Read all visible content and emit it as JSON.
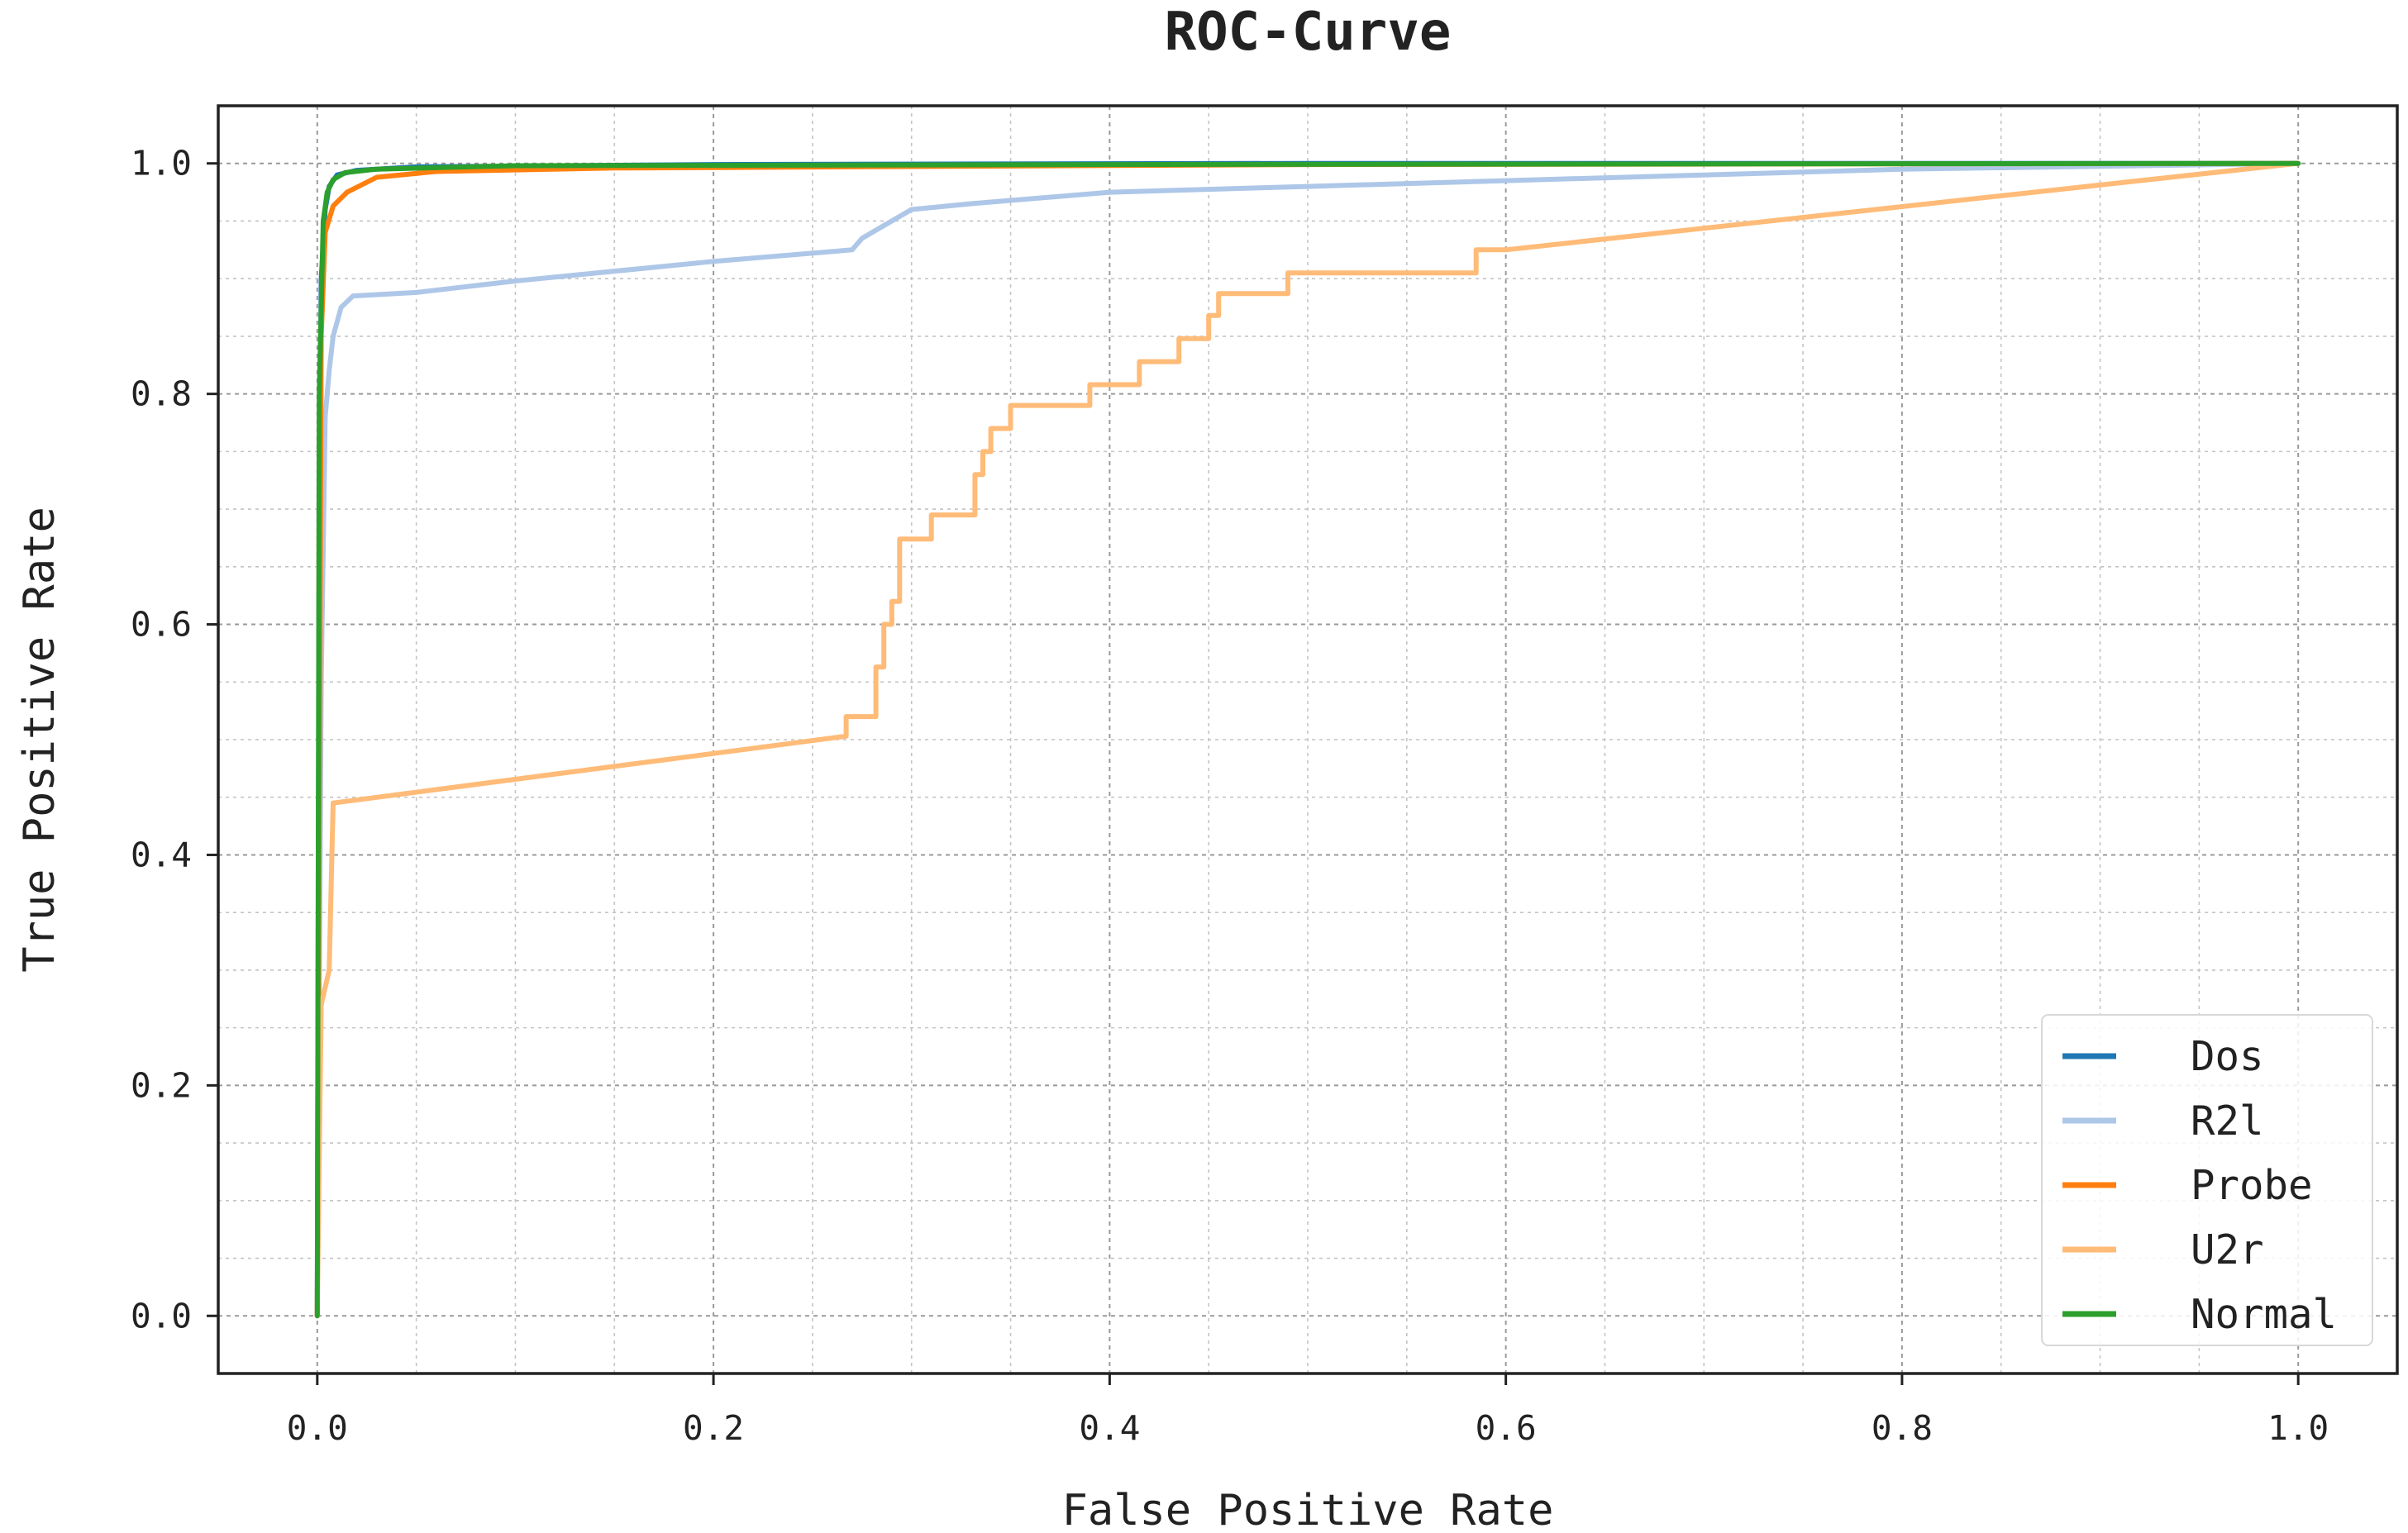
{
  "chart_data": {
    "type": "line",
    "title": "ROC-Curve",
    "xlabel": "False Positive Rate",
    "ylabel": "True Positive Rate",
    "xlim": [
      -0.05,
      1.05
    ],
    "ylim": [
      -0.05,
      1.05
    ],
    "xticks": [
      0.0,
      0.2,
      0.4,
      0.6,
      0.8,
      1.0
    ],
    "xtick_labels": [
      "0.0",
      "0.2",
      "0.4",
      "0.6",
      "0.8",
      "1.0"
    ],
    "yticks": [
      0.0,
      0.2,
      0.4,
      0.6,
      0.8,
      1.0
    ],
    "ytick_labels": [
      "0.0",
      "0.2",
      "0.4",
      "0.6",
      "0.8",
      "1.0"
    ],
    "grid": true,
    "minor_grid": true,
    "legend_position": "lower-right",
    "series": [
      {
        "name": "Dos",
        "color": "#1f77b4",
        "points": [
          [
            0,
            0
          ],
          [
            0.001,
            0.7
          ],
          [
            0.002,
            0.9
          ],
          [
            0.004,
            0.96
          ],
          [
            0.006,
            0.98
          ],
          [
            0.01,
            0.99
          ],
          [
            0.02,
            0.994
          ],
          [
            0.05,
            0.997
          ],
          [
            0.2,
            0.999
          ],
          [
            0.5,
            1.0
          ],
          [
            1.0,
            1.0
          ]
        ]
      },
      {
        "name": "R2l",
        "color": "#aec7e8",
        "points": [
          [
            0,
            0
          ],
          [
            0.002,
            0.55
          ],
          [
            0.004,
            0.78
          ],
          [
            0.006,
            0.82
          ],
          [
            0.008,
            0.85
          ],
          [
            0.012,
            0.875
          ],
          [
            0.018,
            0.885
          ],
          [
            0.05,
            0.888
          ],
          [
            0.1,
            0.898
          ],
          [
            0.2,
            0.915
          ],
          [
            0.27,
            0.925
          ],
          [
            0.275,
            0.935
          ],
          [
            0.285,
            0.945
          ],
          [
            0.3,
            0.96
          ],
          [
            0.33,
            0.965
          ],
          [
            0.4,
            0.975
          ],
          [
            0.5,
            0.98
          ],
          [
            0.6,
            0.985
          ],
          [
            0.7,
            0.99
          ],
          [
            0.8,
            0.995
          ],
          [
            1.0,
            1.0
          ]
        ]
      },
      {
        "name": "Probe",
        "color": "#ff7f0e",
        "points": [
          [
            0,
            0
          ],
          [
            0.002,
            0.85
          ],
          [
            0.004,
            0.94
          ],
          [
            0.008,
            0.963
          ],
          [
            0.015,
            0.975
          ],
          [
            0.03,
            0.988
          ],
          [
            0.06,
            0.993
          ],
          [
            0.15,
            0.996
          ],
          [
            0.5,
            0.999
          ],
          [
            1.0,
            1.0
          ]
        ]
      },
      {
        "name": "U2r",
        "color": "#ffbb78",
        "points": [
          [
            0,
            0
          ],
          [
            0.002,
            0.27
          ],
          [
            0.006,
            0.3
          ],
          [
            0.008,
            0.445
          ],
          [
            0.267,
            0.503
          ],
          [
            0.267,
            0.52
          ],
          [
            0.282,
            0.52
          ],
          [
            0.282,
            0.563
          ],
          [
            0.286,
            0.563
          ],
          [
            0.286,
            0.6
          ],
          [
            0.29,
            0.6
          ],
          [
            0.29,
            0.62
          ],
          [
            0.294,
            0.62
          ],
          [
            0.294,
            0.674
          ],
          [
            0.31,
            0.674
          ],
          [
            0.31,
            0.695
          ],
          [
            0.332,
            0.695
          ],
          [
            0.332,
            0.73
          ],
          [
            0.336,
            0.73
          ],
          [
            0.336,
            0.75
          ],
          [
            0.34,
            0.75
          ],
          [
            0.34,
            0.77
          ],
          [
            0.35,
            0.77
          ],
          [
            0.35,
            0.79
          ],
          [
            0.39,
            0.79
          ],
          [
            0.39,
            0.808
          ],
          [
            0.415,
            0.808
          ],
          [
            0.415,
            0.828
          ],
          [
            0.435,
            0.828
          ],
          [
            0.435,
            0.848
          ],
          [
            0.45,
            0.848
          ],
          [
            0.45,
            0.868
          ],
          [
            0.455,
            0.868
          ],
          [
            0.455,
            0.887
          ],
          [
            0.49,
            0.887
          ],
          [
            0.49,
            0.905
          ],
          [
            0.585,
            0.905
          ],
          [
            0.585,
            0.925
          ],
          [
            0.6,
            0.925
          ],
          [
            1.0,
            1.0
          ]
        ]
      },
      {
        "name": "Normal",
        "color": "#2ca02c",
        "points": [
          [
            0,
            0
          ],
          [
            0.001,
            0.8
          ],
          [
            0.003,
            0.95
          ],
          [
            0.005,
            0.975
          ],
          [
            0.008,
            0.986
          ],
          [
            0.014,
            0.992
          ],
          [
            0.03,
            0.995
          ],
          [
            0.1,
            0.998
          ],
          [
            0.4,
            0.999
          ],
          [
            1.0,
            1.0
          ]
        ]
      }
    ]
  }
}
